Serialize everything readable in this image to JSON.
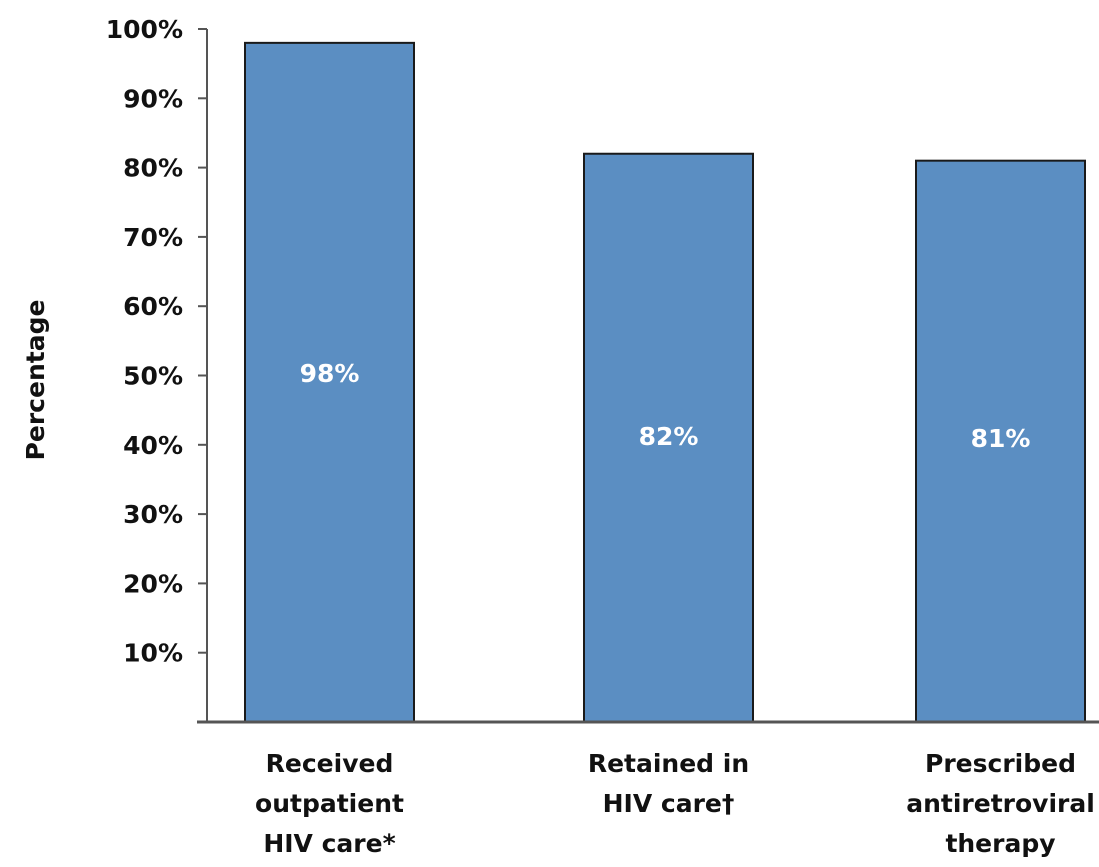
{
  "chart_data": {
    "type": "bar",
    "title": "",
    "xlabel": "",
    "ylabel": "Percentage",
    "ylim": [
      0,
      100
    ],
    "yticks": [
      "10%",
      "20%",
      "30%",
      "40%",
      "50%",
      "60%",
      "70%",
      "80%",
      "90%",
      "100%"
    ],
    "categories": [
      [
        "Received",
        "outpatient",
        "HIV care*"
      ],
      [
        "Retained in",
        "HIV care†"
      ],
      [
        "Prescribed",
        "antiretroviral",
        "therapy"
      ]
    ],
    "values": [
      98,
      82,
      81
    ],
    "data_labels": [
      "98%",
      "82%",
      "81%"
    ],
    "grid": false,
    "legend": "none",
    "colors": {
      "bar_fill": "#5b8ec2",
      "bar_stroke": "#1a1a1a",
      "axis": "#555555",
      "data_label": "#ffffff"
    }
  }
}
